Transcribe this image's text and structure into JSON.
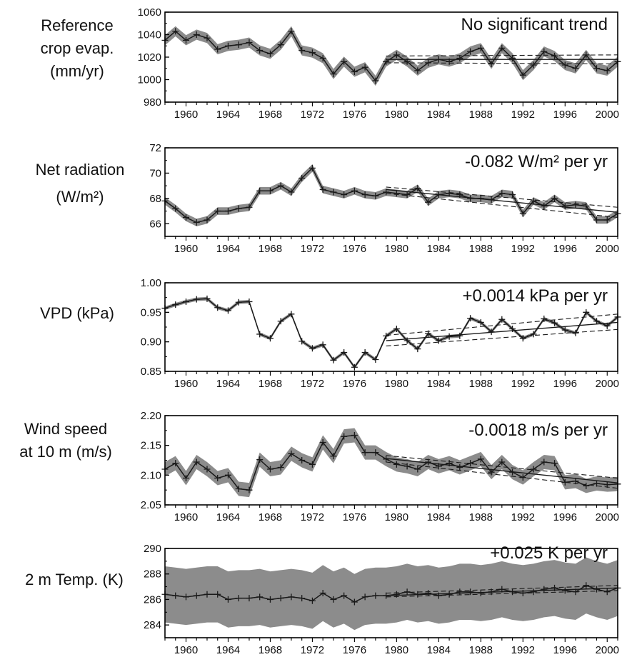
{
  "chart_data": [
    {
      "type": "line",
      "ylabel_lines": [
        "Reference",
        "crop evap.",
        "(mm/yr)"
      ],
      "annotation": "No significant trend",
      "ylim": [
        980,
        1060
      ],
      "yticks": [
        "980",
        "1000",
        "1020",
        "1040",
        "1060"
      ],
      "xlim": [
        1958,
        2001
      ],
      "xticks": [
        "1960",
        "1964",
        "1968",
        "1972",
        "1976",
        "1980",
        "1984",
        "1988",
        "1992",
        "1996",
        "2000"
      ],
      "x": [
        1958,
        1959,
        1960,
        1961,
        1962,
        1963,
        1964,
        1965,
        1966,
        1967,
        1968,
        1969,
        1970,
        1971,
        1972,
        1973,
        1974,
        1975,
        1976,
        1977,
        1978,
        1979,
        1980,
        1981,
        1982,
        1983,
        1984,
        1985,
        1986,
        1987,
        1988,
        1989,
        1990,
        1991,
        1992,
        1993,
        1994,
        1995,
        1996,
        1997,
        1998,
        1999,
        2000,
        2001
      ],
      "values": [
        1035,
        1043,
        1035,
        1040,
        1037,
        1027,
        1030,
        1031,
        1033,
        1026,
        1023,
        1031,
        1043,
        1026,
        1024,
        1019,
        1005,
        1016,
        1007,
        1011,
        999,
        1016,
        1022,
        1016,
        1008,
        1015,
        1018,
        1016,
        1019,
        1025,
        1028,
        1014,
        1028,
        1019,
        1004,
        1013,
        1025,
        1021,
        1013,
        1010,
        1022,
        1010,
        1008,
        1016
      ],
      "band": 4.5,
      "trend": {
        "x": [
          1979,
          2001
        ],
        "y": [
          1018,
          1018
        ],
        "upper": [
          1021,
          1022
        ],
        "lower": [
          1015,
          1014
        ]
      }
    },
    {
      "type": "line",
      "ylabel_lines": [
        "Net radiation",
        "(W/m²)"
      ],
      "annotation": "-0.082 W/m² per yr",
      "ylim": [
        65,
        72
      ],
      "yticks": [
        "66",
        "68",
        "70",
        "72"
      ],
      "ytick_values": [
        66,
        68,
        70,
        72
      ],
      "xlim": [
        1958,
        2001
      ],
      "xticks": [
        "1960",
        "1964",
        "1968",
        "1972",
        "1976",
        "1980",
        "1984",
        "1988",
        "1992",
        "1996",
        "2000"
      ],
      "x": [
        1958,
        1959,
        1960,
        1961,
        1962,
        1963,
        1964,
        1965,
        1966,
        1967,
        1968,
        1969,
        1970,
        1971,
        1972,
        1973,
        1974,
        1975,
        1976,
        1977,
        1978,
        1979,
        1980,
        1981,
        1982,
        1983,
        1984,
        1985,
        1986,
        1987,
        1988,
        1989,
        1990,
        1991,
        1992,
        1993,
        1994,
        1995,
        1996,
        1997,
        1998,
        1999,
        2000,
        2001
      ],
      "values": [
        67.8,
        67.2,
        66.5,
        66.1,
        66.3,
        67.0,
        67.0,
        67.2,
        67.3,
        68.6,
        68.6,
        69.0,
        68.5,
        69.6,
        70.4,
        68.7,
        68.5,
        68.3,
        68.6,
        68.3,
        68.2,
        68.5,
        68.4,
        68.3,
        68.8,
        67.7,
        68.3,
        68.4,
        68.3,
        68.0,
        68.0,
        67.9,
        68.4,
        68.3,
        66.8,
        67.8,
        67.4,
        68.0,
        67.4,
        67.5,
        67.4,
        66.3,
        66.3,
        66.8
      ],
      "band": 0.3,
      "trend": {
        "x": [
          1979,
          2001
        ],
        "y": [
          68.7,
          66.9
        ],
        "upper": [
          68.9,
          67.3
        ],
        "lower": [
          68.4,
          66.5
        ]
      }
    },
    {
      "type": "line",
      "ylabel_lines": [
        "VPD (kPa)"
      ],
      "annotation": "+0.0014 kPa per yr",
      "ylim": [
        0.85,
        1.0
      ],
      "yticks": [
        "0.85",
        "0.90",
        "0.95",
        "1.00"
      ],
      "xlim": [
        1958,
        2001
      ],
      "xticks": [
        "1960",
        "1964",
        "1968",
        "1972",
        "1976",
        "1980",
        "1984",
        "1988",
        "1992",
        "1996",
        "2000"
      ],
      "x": [
        1958,
        1959,
        1960,
        1961,
        1962,
        1963,
        1964,
        1965,
        1966,
        1967,
        1968,
        1969,
        1970,
        1971,
        1972,
        1973,
        1974,
        1975,
        1976,
        1977,
        1978,
        1979,
        1980,
        1981,
        1982,
        1983,
        1984,
        1985,
        1986,
        1987,
        1988,
        1989,
        1990,
        1991,
        1992,
        1993,
        1994,
        1995,
        1996,
        1997,
        1998,
        1999,
        2000,
        2001
      ],
      "values": [
        0.957,
        0.963,
        0.968,
        0.972,
        0.973,
        0.958,
        0.953,
        0.967,
        0.968,
        0.913,
        0.906,
        0.935,
        0.947,
        0.901,
        0.889,
        0.895,
        0.869,
        0.882,
        0.857,
        0.882,
        0.87,
        0.91,
        0.922,
        0.902,
        0.888,
        0.914,
        0.902,
        0.909,
        0.91,
        0.94,
        0.933,
        0.917,
        0.938,
        0.922,
        0.906,
        0.913,
        0.939,
        0.932,
        0.92,
        0.915,
        0.95,
        0.935,
        0.927,
        0.942
      ],
      "band": 0.003,
      "trend": {
        "x": [
          1979,
          2001
        ],
        "y": [
          0.902,
          0.933
        ],
        "upper": [
          0.911,
          0.947
        ],
        "lower": [
          0.893,
          0.921
        ]
      }
    },
    {
      "type": "line",
      "ylabel_lines": [
        "Wind speed",
        "at 10 m (m/s)"
      ],
      "annotation": "-0.0018 m/s per yr",
      "ylim": [
        2.05,
        2.2
      ],
      "yticks": [
        "2.05",
        "2.10",
        "2.15",
        "2.20"
      ],
      "xlim": [
        1958,
        2001
      ],
      "xticks": [
        "1960",
        "1964",
        "1968",
        "1972",
        "1976",
        "1980",
        "1984",
        "1988",
        "1992",
        "1996",
        "2000"
      ],
      "x": [
        1958,
        1959,
        1960,
        1961,
        1962,
        1963,
        1964,
        1965,
        1966,
        1967,
        1968,
        1969,
        1970,
        1971,
        1972,
        1973,
        1974,
        1975,
        1976,
        1977,
        1978,
        1979,
        1980,
        1981,
        1982,
        1983,
        1984,
        1985,
        1986,
        1987,
        1988,
        1989,
        1990,
        1991,
        1992,
        1993,
        1994,
        1995,
        1996,
        1997,
        1998,
        1999,
        2000,
        2001
      ],
      "values": [
        2.11,
        2.12,
        2.095,
        2.122,
        2.11,
        2.095,
        2.1,
        2.077,
        2.075,
        2.126,
        2.11,
        2.113,
        2.136,
        2.125,
        2.118,
        2.155,
        2.132,
        2.165,
        2.167,
        2.138,
        2.138,
        2.127,
        2.118,
        2.115,
        2.11,
        2.122,
        2.115,
        2.12,
        2.113,
        2.12,
        2.127,
        2.105,
        2.122,
        2.105,
        2.096,
        2.11,
        2.122,
        2.12,
        2.088,
        2.09,
        2.082,
        2.086,
        2.084,
        2.085
      ],
      "band": 0.012,
      "trend": {
        "x": [
          1979,
          2001
        ],
        "y": [
          2.128,
          2.087
        ],
        "upper": [
          2.133,
          2.095
        ],
        "lower": [
          2.122,
          2.078
        ]
      }
    },
    {
      "type": "line",
      "ylabel_lines": [
        "2 m Temp. (K)"
      ],
      "annotation": "+0.025 K per yr",
      "ylim": [
        283,
        290
      ],
      "yticks": [
        "284",
        "286",
        "288",
        "290"
      ],
      "ytick_values": [
        284,
        286,
        288,
        290
      ],
      "xlim": [
        1958,
        2001
      ],
      "xticks": [
        "1960",
        "1964",
        "1968",
        "1972",
        "1976",
        "1980",
        "1984",
        "1988",
        "1992",
        "1996",
        "2000"
      ],
      "x": [
        1958,
        1959,
        1960,
        1961,
        1962,
        1963,
        1964,
        1965,
        1966,
        1967,
        1968,
        1969,
        1970,
        1971,
        1972,
        1973,
        1974,
        1975,
        1976,
        1977,
        1978,
        1979,
        1980,
        1981,
        1982,
        1983,
        1984,
        1985,
        1986,
        1987,
        1988,
        1989,
        1990,
        1991,
        1992,
        1993,
        1994,
        1995,
        1996,
        1997,
        1998,
        1999,
        2000,
        2001
      ],
      "values": [
        286.4,
        286.3,
        286.2,
        286.3,
        286.4,
        286.4,
        286.0,
        286.1,
        286.1,
        286.2,
        286.0,
        286.1,
        286.2,
        286.1,
        285.9,
        286.5,
        286.0,
        286.3,
        285.8,
        286.2,
        286.3,
        286.3,
        286.4,
        286.6,
        286.4,
        286.5,
        286.3,
        286.4,
        286.6,
        286.6,
        286.5,
        286.6,
        286.8,
        286.6,
        286.5,
        286.6,
        286.8,
        286.9,
        286.7,
        286.6,
        287.1,
        286.8,
        286.6,
        286.9
      ],
      "band": 2.2,
      "trend": {
        "x": [
          1979,
          2001
        ],
        "y": [
          286.3,
          286.9
        ],
        "upper": [
          286.5,
          287.1
        ],
        "lower": [
          286.2,
          286.7
        ]
      }
    }
  ],
  "colors": {
    "band": "#8c8c8c",
    "line": "#1a1a1a",
    "axis": "#000000"
  }
}
